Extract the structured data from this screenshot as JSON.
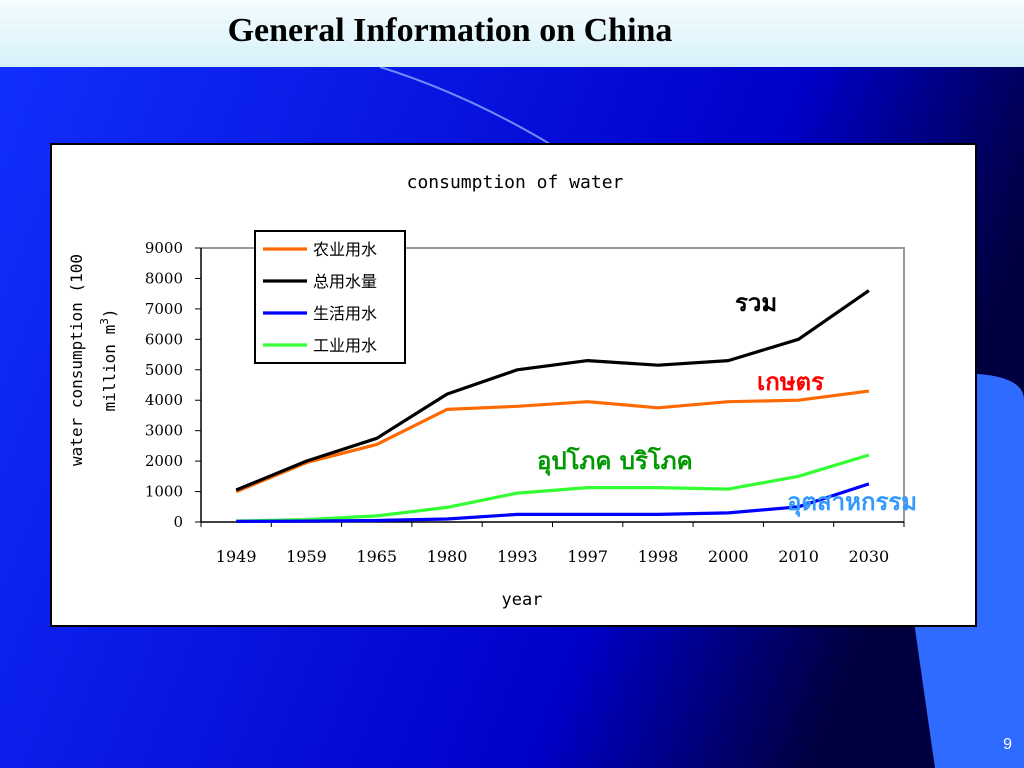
{
  "slide": {
    "title": "General Information on China",
    "page_number": "9"
  },
  "colors": {
    "background_dark": "#0000d0",
    "background_light": "#1b3cff",
    "accent_shape": "#2f6bff"
  },
  "chart_data": {
    "type": "line",
    "title": "consumption of water",
    "xlabel": "year",
    "ylabel_line1": "water consumption (100",
    "ylabel_line2": "million m",
    "ylabel_sup": "3",
    "ylabel_close": ")",
    "ylim": [
      0,
      9000
    ],
    "yticks": [
      "0",
      "1000",
      "2000",
      "3000",
      "4000",
      "5000",
      "6000",
      "7000",
      "8000",
      "9000"
    ],
    "categories": [
      "1949",
      "1959",
      "1965",
      "1980",
      "1993",
      "1997",
      "1998",
      "2000",
      "2010",
      "2030"
    ],
    "legend_position": "top-left",
    "series": [
      {
        "name": "农业用水",
        "color": "#ff6a00",
        "values": [
          1000,
          1950,
          2550,
          3700,
          3800,
          3950,
          3750,
          3950,
          4000,
          4300
        ]
      },
      {
        "name": "总用水量",
        "color": "#000000",
        "values": [
          1050,
          2000,
          2750,
          4200,
          5000,
          5300,
          5150,
          5300,
          6000,
          7600
        ]
      },
      {
        "name": "生活用水",
        "color": "#0000ff",
        "values": [
          20,
          30,
          50,
          100,
          250,
          250,
          250,
          300,
          500,
          1250
        ]
      },
      {
        "name": "工业用水",
        "color": "#33ff33",
        "values": [
          30,
          80,
          200,
          480,
          950,
          1130,
          1130,
          1080,
          1500,
          2200
        ]
      }
    ],
    "annotations": [
      {
        "text": "รวม",
        "color": "#000000"
      },
      {
        "text": "เกษตร",
        "color": "#ff0000"
      },
      {
        "text": "อุปโภค บริโภค",
        "color": "#009900"
      },
      {
        "text": "อุตสาหกรรม",
        "color": "#3399ff"
      }
    ]
  }
}
